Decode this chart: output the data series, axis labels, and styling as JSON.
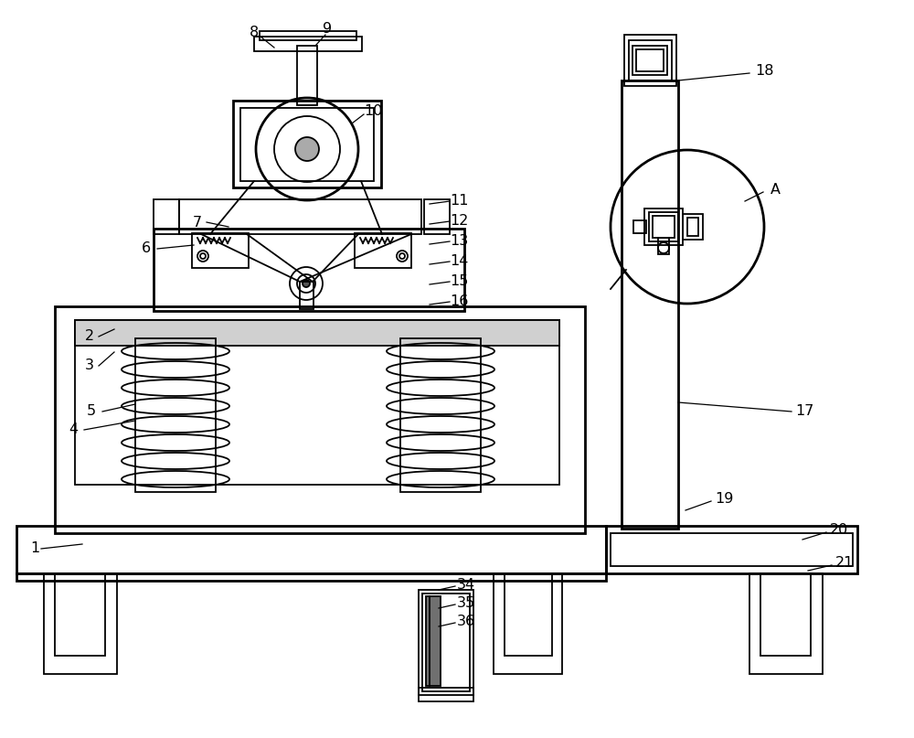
{
  "bg_color": "#ffffff",
  "lc": "#000000",
  "lw": 1.3,
  "tlw": 2.0,
  "fig_w": 10.0,
  "fig_h": 8.07
}
